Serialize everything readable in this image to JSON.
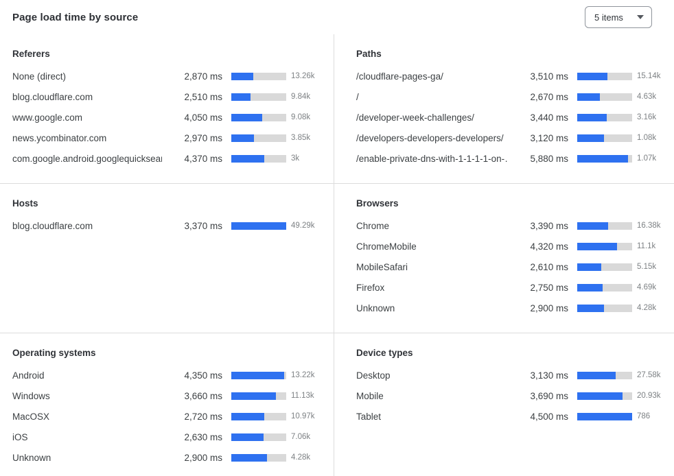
{
  "header": {
    "title": "Page load time by source",
    "items_select": {
      "value": "5 items",
      "icon": "chevron-down"
    }
  },
  "colors": {
    "bar_fill": "#2e71f0",
    "bar_track": "#d9d9d9",
    "divider": "#dcdcdc",
    "label_text": "#3c4043",
    "count_text": "#7d8184",
    "heading_text": "#2f3237"
  },
  "chart_data": [
    {
      "type": "bar",
      "title": "Referers",
      "unit": "ms",
      "bar_axis_max_ms": 7270,
      "rows": [
        {
          "label": "None (direct)",
          "ms": 2870,
          "ms_display": "2,870 ms",
          "count_display": "13.26k"
        },
        {
          "label": "blog.cloudflare.com",
          "ms": 2510,
          "ms_display": "2,510 ms",
          "count_display": "9.84k"
        },
        {
          "label": "www.google.com",
          "ms": 4050,
          "ms_display": "4,050 ms",
          "count_display": "9.08k"
        },
        {
          "label": "news.ycombinator.com",
          "ms": 2970,
          "ms_display": "2,970 ms",
          "count_display": "3.85k"
        },
        {
          "label": "com.google.android.googlequicksearc…",
          "ms": 4370,
          "ms_display": "4,370 ms",
          "count_display": "3k"
        }
      ]
    },
    {
      "type": "bar",
      "title": "Paths",
      "unit": "ms",
      "bar_axis_max_ms": 6400,
      "rows": [
        {
          "label": "/cloudflare-pages-ga/",
          "ms": 3510,
          "ms_display": "3,510 ms",
          "count_display": "15.14k"
        },
        {
          "label": "/",
          "ms": 2670,
          "ms_display": "2,670 ms",
          "count_display": "4.63k"
        },
        {
          "label": "/developer-week-challenges/",
          "ms": 3440,
          "ms_display": "3,440 ms",
          "count_display": "3.16k"
        },
        {
          "label": "/developers-developers-developers/",
          "ms": 3120,
          "ms_display": "3,120 ms",
          "count_display": "1.08k"
        },
        {
          "label": "/enable-private-dns-with-1-1-1-1-on-…",
          "ms": 5880,
          "ms_display": "5,880 ms",
          "count_display": "1.07k"
        }
      ]
    },
    {
      "type": "bar",
      "title": "Hosts",
      "unit": "ms",
      "bar_axis_max_ms": 3370,
      "rows": [
        {
          "label": "blog.cloudflare.com",
          "ms": 3370,
          "ms_display": "3,370 ms",
          "count_display": "49.29k"
        }
      ]
    },
    {
      "type": "bar",
      "title": "Browsers",
      "unit": "ms",
      "bar_axis_max_ms": 6000,
      "rows": [
        {
          "label": "Chrome",
          "ms": 3390,
          "ms_display": "3,390 ms",
          "count_display": "16.38k"
        },
        {
          "label": "ChromeMobile",
          "ms": 4320,
          "ms_display": "4,320 ms",
          "count_display": "11.1k"
        },
        {
          "label": "MobileSafari",
          "ms": 2610,
          "ms_display": "2,610 ms",
          "count_display": "5.15k"
        },
        {
          "label": "Firefox",
          "ms": 2750,
          "ms_display": "2,750 ms",
          "count_display": "4.69k"
        },
        {
          "label": "Unknown",
          "ms": 2900,
          "ms_display": "2,900 ms",
          "count_display": "4.28k"
        }
      ]
    },
    {
      "type": "bar",
      "title": "Operating systems",
      "unit": "ms",
      "bar_axis_max_ms": 4500,
      "rows": [
        {
          "label": "Android",
          "ms": 4350,
          "ms_display": "4,350 ms",
          "count_display": "13.22k"
        },
        {
          "label": "Windows",
          "ms": 3660,
          "ms_display": "3,660 ms",
          "count_display": "11.13k"
        },
        {
          "label": "MacOSX",
          "ms": 2720,
          "ms_display": "2,720 ms",
          "count_display": "10.97k"
        },
        {
          "label": "iOS",
          "ms": 2630,
          "ms_display": "2,630 ms",
          "count_display": "7.06k"
        },
        {
          "label": "Unknown",
          "ms": 2900,
          "ms_display": "2,900 ms",
          "count_display": "4.28k"
        }
      ]
    },
    {
      "type": "bar",
      "title": "Device types",
      "unit": "ms",
      "bar_axis_max_ms": 4500,
      "rows": [
        {
          "label": "Desktop",
          "ms": 3130,
          "ms_display": "3,130 ms",
          "count_display": "27.58k"
        },
        {
          "label": "Mobile",
          "ms": 3690,
          "ms_display": "3,690 ms",
          "count_display": "20.93k"
        },
        {
          "label": "Tablet",
          "ms": 4500,
          "ms_display": "4,500 ms",
          "count_display": "786"
        }
      ]
    }
  ]
}
